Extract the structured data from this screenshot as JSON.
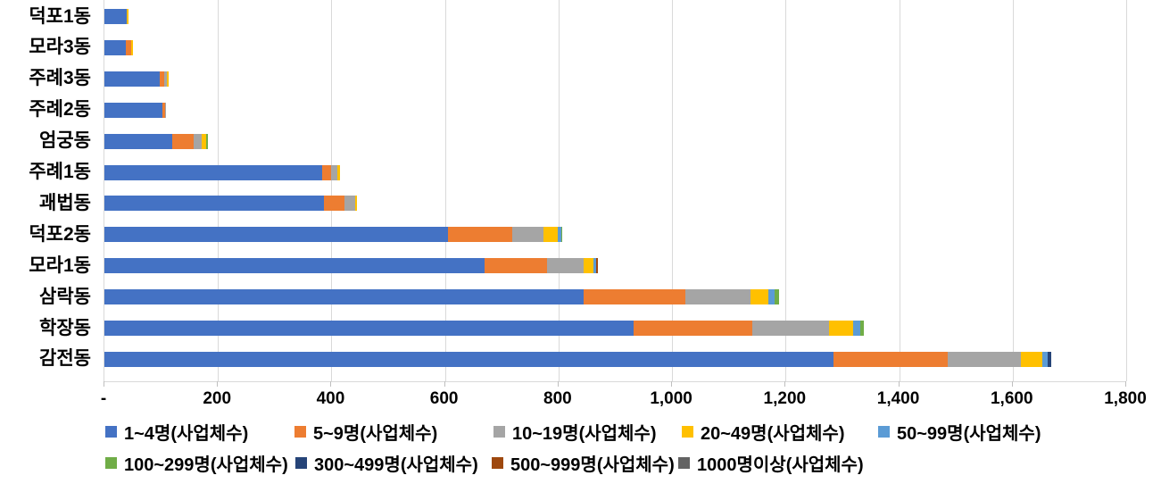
{
  "chart_data": {
    "type": "bar",
    "orientation": "horizontal",
    "stacked": true,
    "title": "",
    "xlabel": "",
    "ylabel": "",
    "xlim": [
      0,
      1800
    ],
    "grid": "vertical",
    "gridline_color": "#d9d9d9",
    "legend_position": "bottom",
    "categories": [
      "덕포1동",
      "모라3동",
      "주례3동",
      "주례2동",
      "엄궁동",
      "주례1동",
      "괘법동",
      "덕포2동",
      "모라1동",
      "삼락동",
      "학장동",
      "감전동"
    ],
    "x_ticks": {
      "labels": [
        "-",
        "200",
        "400",
        "600",
        "800",
        "1,000",
        "1,200",
        "1,400",
        "1,600",
        "1,800"
      ],
      "values": [
        0,
        200,
        400,
        600,
        800,
        1000,
        1200,
        1400,
        1600,
        1800
      ]
    },
    "series": [
      {
        "name": "1~4명(사업체수)",
        "color": "#4472c4",
        "values": [
          40,
          38,
          97,
          102,
          120,
          383,
          386,
          606,
          669,
          844,
          933,
          1284
        ]
      },
      {
        "name": "5~9명(사업체수)",
        "color": "#ed7d31",
        "values": [
          0,
          9,
          8,
          5,
          37,
          17,
          37,
          113,
          110,
          179,
          208,
          201
        ]
      },
      {
        "name": "10~19명(사업체수)",
        "color": "#a5a5a5",
        "values": [
          0,
          0,
          5,
          2,
          15,
          10,
          18,
          55,
          66,
          115,
          136,
          130
        ]
      },
      {
        "name": "20~49명(사업체수)",
        "color": "#ffc000",
        "values": [
          3,
          3,
          3,
          0,
          8,
          5,
          4,
          25,
          17,
          32,
          42,
          38
        ]
      },
      {
        "name": "50~99명(사업체수)",
        "color": "#5b9bd5",
        "values": [
          0,
          0,
          0,
          0,
          0,
          0,
          0,
          6,
          5,
          10,
          13,
          8
        ]
      },
      {
        "name": "100~299명(사업체수)",
        "color": "#70ad47",
        "values": [
          0,
          0,
          0,
          0,
          3,
          0,
          0,
          2,
          0,
          8,
          6,
          0
        ]
      },
      {
        "name": "300~499명(사업체수)",
        "color": "#264478",
        "values": [
          0,
          0,
          0,
          0,
          0,
          0,
          0,
          0,
          0,
          0,
          0,
          7
        ]
      },
      {
        "name": "500~999명(사업체수)",
        "color": "#9e480e",
        "values": [
          0,
          0,
          0,
          0,
          0,
          0,
          0,
          0,
          2,
          0,
          0,
          0
        ]
      },
      {
        "name": "1000명이상(사업체수)",
        "color": "#636363",
        "values": [
          0,
          0,
          0,
          0,
          0,
          0,
          0,
          0,
          0,
          0,
          0,
          0
        ]
      }
    ],
    "legend_rows": [
      [
        0,
        1,
        2,
        3,
        4
      ],
      [
        5,
        6,
        7,
        8
      ]
    ]
  }
}
